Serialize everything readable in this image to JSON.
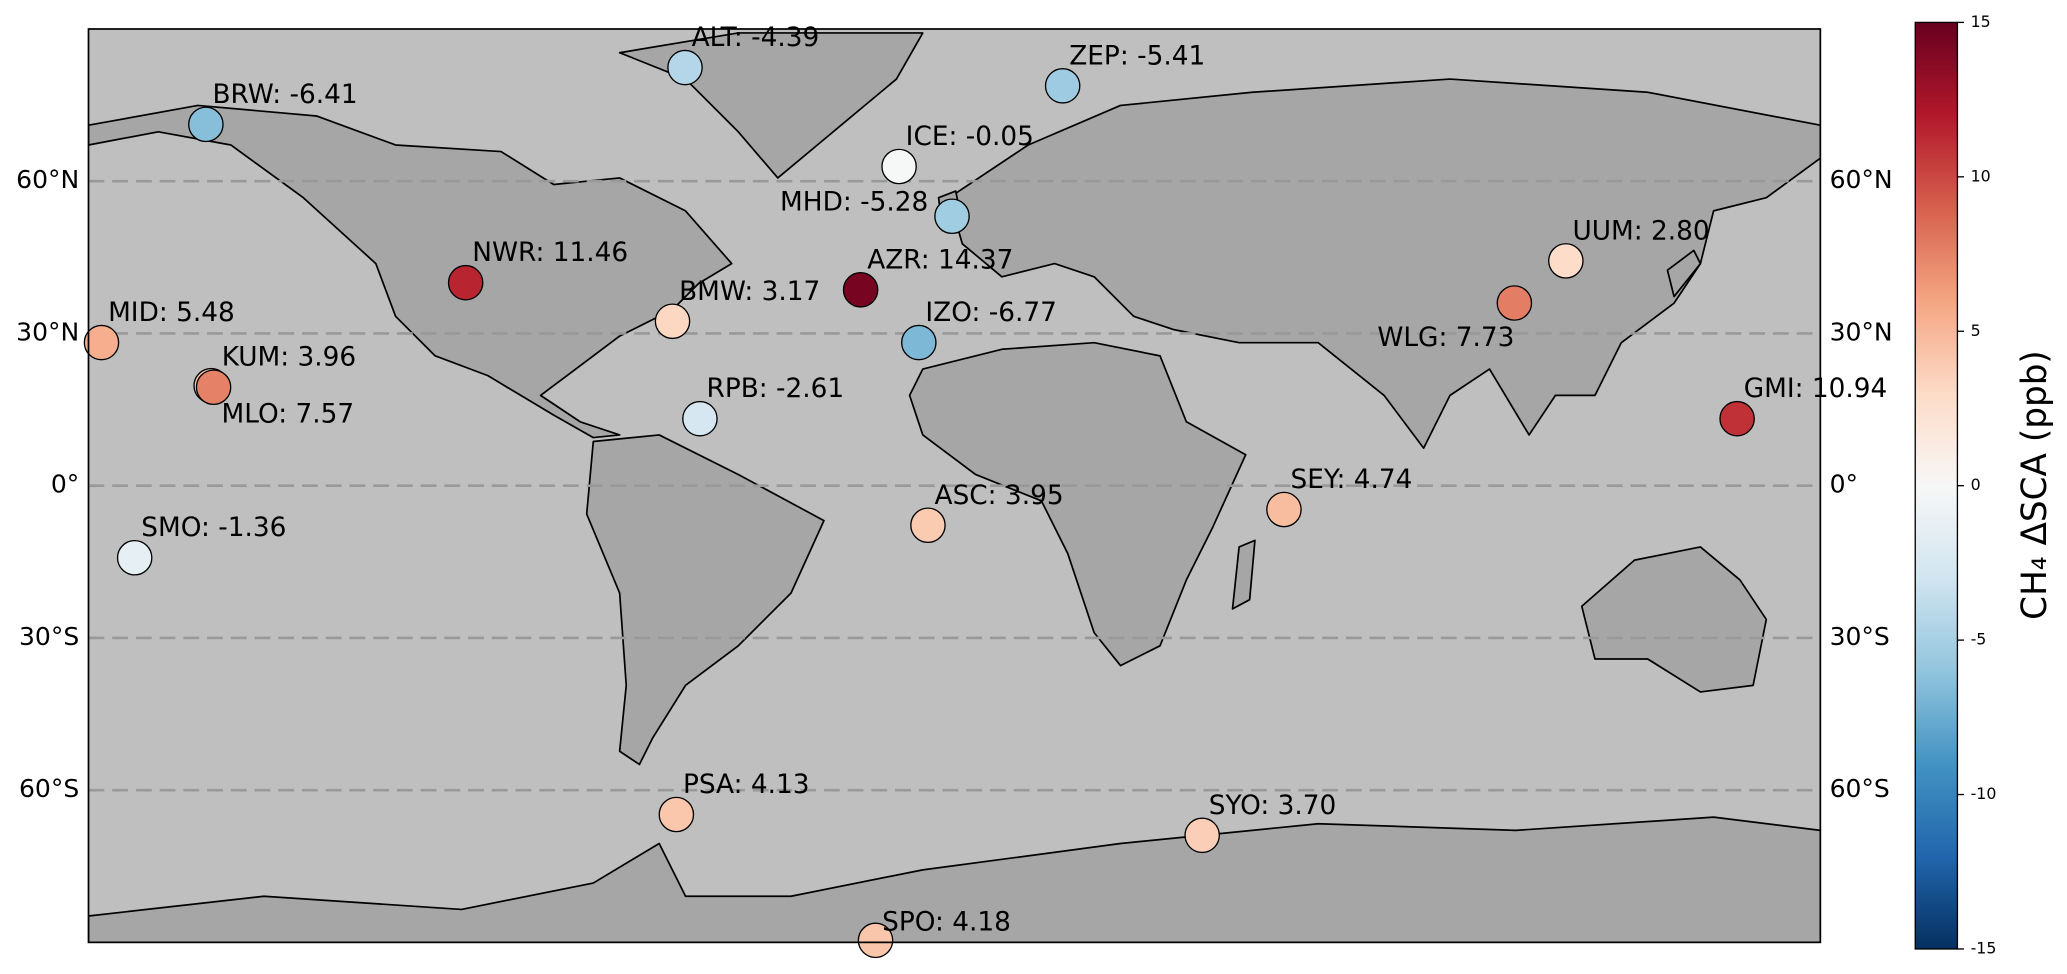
{
  "chart_data": {
    "type": "station-map",
    "colorbar_label": "CH₄ ΔSCA (ppb)",
    "colorscale": [
      "#053061",
      "#2166ac",
      "#4393c3",
      "#92c5de",
      "#d1e5f0",
      "#f7f7f7",
      "#fddbc7",
      "#f4a582",
      "#d6604d",
      "#b2182b",
      "#67001f"
    ],
    "clim": [
      -15,
      15
    ],
    "cticks": [
      -15,
      -10,
      -5,
      0,
      5,
      10,
      15
    ],
    "xlim": [
      -180,
      180
    ],
    "ylim": [
      -90,
      90
    ],
    "yticks": [
      {
        "value": 60,
        "label": "60°N"
      },
      {
        "value": 30,
        "label": "30°N"
      },
      {
        "value": 0,
        "label": "0°"
      },
      {
        "value": -30,
        "label": "30°S"
      },
      {
        "value": -60,
        "label": "60°S"
      }
    ],
    "grid": true,
    "stations": [
      {
        "label": "ALT: -4.39",
        "value": -4.39,
        "lon": -56,
        "lat": 82.4
      },
      {
        "label": "BRW: -6.41",
        "value": -6.41,
        "lon": -155.6,
        "lat": 71.2
      },
      {
        "label": "ZEP: -5.41",
        "value": -5.41,
        "lon": 22.5,
        "lat": 78.8
      },
      {
        "label": "ICE: -0.05",
        "value": -0.05,
        "lon": -11.5,
        "lat": 62.9
      },
      {
        "label": "MHD: -5.28",
        "value": -5.28,
        "lon": -0.5,
        "lat": 53.1
      },
      {
        "label": "NWR: 11.46",
        "value": 11.46,
        "lon": -101.6,
        "lat": 40
      },
      {
        "label": "AZR: 14.37",
        "value": 14.37,
        "lon": -19.5,
        "lat": 38.6
      },
      {
        "label": "BMW: 3.17",
        "value": 3.17,
        "lon": -58.6,
        "lat": 32.4
      },
      {
        "label": "IZO: -6.77",
        "value": -6.77,
        "lon": -7.4,
        "lat": 28.2
      },
      {
        "label": "MID: 5.48",
        "value": 5.48,
        "lon": -177.3,
        "lat": 28.2
      },
      {
        "label": "KUM: 3.96",
        "value": 3.96,
        "lon": -154.5,
        "lat": 19.7
      },
      {
        "label": "MLO: 7.57",
        "value": 7.57,
        "lon": -154,
        "lat": 19.4
      },
      {
        "label": "UUM: 2.80",
        "value": 2.8,
        "lon": 127.1,
        "lat": 44.3
      },
      {
        "label": "WLG: 7.73",
        "value": 7.73,
        "lon": 116.4,
        "lat": 36
      },
      {
        "label": "RPB: -2.61",
        "value": -2.61,
        "lon": -52.9,
        "lat": 13.2
      },
      {
        "label": "GMI: 10.94",
        "value": 10.94,
        "lon": 162.7,
        "lat": 13.2
      },
      {
        "label": "ASC: 3.95",
        "value": 3.95,
        "lon": -5.5,
        "lat": -7.8
      },
      {
        "label": "SEY: 4.74",
        "value": 4.74,
        "lon": 68.5,
        "lat": -4.7
      },
      {
        "label": "SMO: -1.36",
        "value": -1.36,
        "lon": -170.4,
        "lat": -14.2
      },
      {
        "label": "PSA: 4.13",
        "value": 4.13,
        "lon": -57.8,
        "lat": -64.8
      },
      {
        "label": "SYO: 3.70",
        "value": 3.7,
        "lon": 51.5,
        "lat": -68.9
      },
      {
        "label": "SPO: 4.18",
        "value": 4.18,
        "lon": -16.4,
        "lat": -89.6
      }
    ]
  }
}
